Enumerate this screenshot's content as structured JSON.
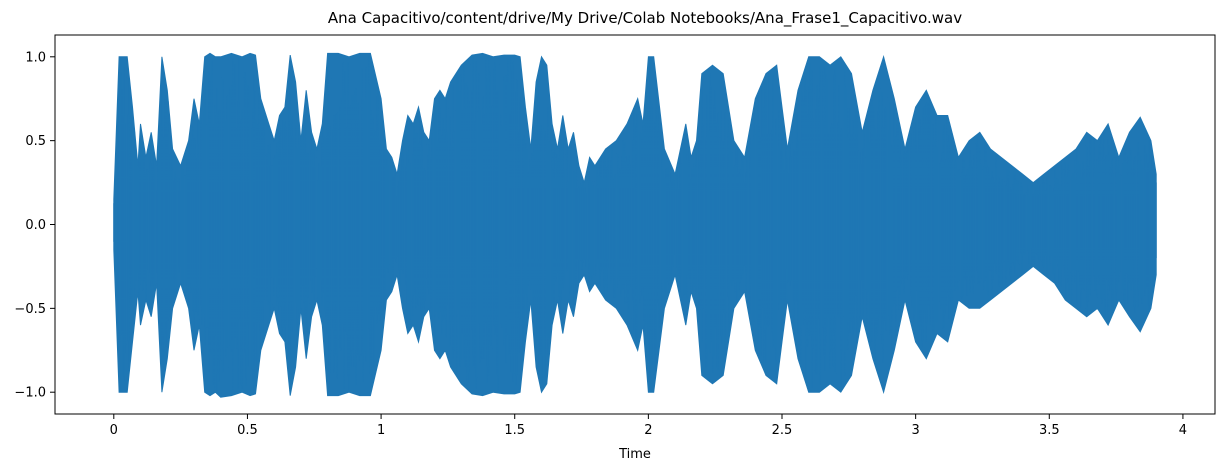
{
  "chart_data": {
    "type": "area",
    "title": "Ana Capacitivo/content/drive/My Drive/Colab Notebooks/Ana_Frase1_Capacitivo.wav",
    "xlabel": "Time",
    "ylabel": "",
    "xlim": [
      -0.22,
      4.12
    ],
    "ylim": [
      -1.13,
      1.13
    ],
    "x_ticks": [
      {
        "value": 0,
        "label": "0"
      },
      {
        "value": 0.5,
        "label": "0.5"
      },
      {
        "value": 1,
        "label": "1"
      },
      {
        "value": 1.5,
        "label": "1.5"
      },
      {
        "value": 2,
        "label": "2"
      },
      {
        "value": 2.5,
        "label": "2.5"
      },
      {
        "value": 3,
        "label": "3"
      },
      {
        "value": 3.5,
        "label": "3.5"
      },
      {
        "value": 4,
        "label": "4"
      }
    ],
    "y_ticks": [
      {
        "value": 1.0,
        "label": "1.0"
      },
      {
        "value": 0.5,
        "label": "0.5"
      },
      {
        "value": 0.0,
        "label": "0.0"
      },
      {
        "value": -0.5,
        "label": "−0.5"
      },
      {
        "value": -1.0,
        "label": "−1.0"
      }
    ],
    "grid": false,
    "color": "#1f77b4",
    "series": [
      {
        "x": [
          0.0,
          0.02,
          0.05,
          0.07,
          0.09,
          0.1,
          0.12,
          0.14,
          0.16,
          0.18,
          0.2,
          0.22,
          0.25,
          0.28,
          0.3,
          0.32,
          0.34,
          0.36,
          0.38,
          0.4,
          0.44,
          0.48,
          0.51,
          0.53,
          0.55,
          0.58,
          0.6,
          0.62,
          0.64,
          0.66,
          0.68,
          0.7,
          0.72,
          0.74,
          0.76,
          0.78,
          0.8,
          0.84,
          0.88,
          0.92,
          0.96,
          1.0,
          1.02,
          1.04,
          1.06,
          1.08,
          1.1,
          1.12,
          1.14,
          1.16,
          1.18,
          1.2,
          1.22,
          1.24,
          1.26,
          1.28,
          1.3,
          1.34,
          1.38,
          1.42,
          1.46,
          1.5,
          1.52,
          1.54,
          1.56,
          1.58,
          1.6,
          1.62,
          1.64,
          1.66,
          1.68,
          1.7,
          1.72,
          1.74,
          1.76,
          1.78,
          1.8,
          1.84,
          1.88,
          1.92,
          1.96,
          1.98,
          2.0,
          2.02,
          2.06,
          2.1,
          2.14,
          2.16,
          2.18,
          2.2,
          2.24,
          2.28,
          2.32,
          2.36,
          2.4,
          2.44,
          2.48,
          2.5,
          2.52,
          2.56,
          2.6,
          2.64,
          2.68,
          2.72,
          2.76,
          2.8,
          2.84,
          2.88,
          2.92,
          2.96,
          3.0,
          3.04,
          3.08,
          3.12,
          3.16,
          3.2,
          3.24,
          3.28,
          3.32,
          3.36,
          3.4,
          3.44,
          3.48,
          3.52,
          3.56,
          3.6,
          3.64,
          3.68,
          3.72,
          3.76,
          3.8,
          3.84,
          3.88,
          3.9
        ],
        "upper": [
          0.15,
          1.0,
          1.0,
          0.7,
          0.35,
          0.6,
          0.4,
          0.55,
          0.35,
          1.0,
          0.8,
          0.45,
          0.35,
          0.5,
          0.75,
          0.6,
          1.0,
          1.02,
          1.0,
          1.0,
          1.02,
          1.0,
          1.02,
          1.01,
          0.75,
          0.6,
          0.5,
          0.65,
          0.7,
          1.01,
          0.85,
          0.5,
          0.8,
          0.55,
          0.45,
          0.6,
          1.02,
          1.02,
          1.0,
          1.02,
          1.02,
          0.75,
          0.45,
          0.4,
          0.3,
          0.5,
          0.65,
          0.6,
          0.7,
          0.55,
          0.5,
          0.75,
          0.8,
          0.75,
          0.85,
          0.9,
          0.95,
          1.01,
          1.02,
          1.0,
          1.01,
          1.01,
          1.0,
          0.7,
          0.45,
          0.85,
          1.0,
          0.95,
          0.6,
          0.45,
          0.65,
          0.45,
          0.55,
          0.35,
          0.25,
          0.4,
          0.35,
          0.45,
          0.5,
          0.6,
          0.75,
          0.6,
          1.0,
          1.0,
          0.45,
          0.3,
          0.6,
          0.4,
          0.5,
          0.9,
          0.95,
          0.9,
          0.5,
          0.4,
          0.75,
          0.9,
          0.95,
          0.7,
          0.45,
          0.8,
          1.0,
          1.0,
          0.95,
          1.0,
          0.9,
          0.55,
          0.8,
          1.0,
          0.75,
          0.45,
          0.7,
          0.8,
          0.65,
          0.65,
          0.4,
          0.5,
          0.55,
          0.45,
          0.4,
          0.35,
          0.3,
          0.25,
          0.3,
          0.35,
          0.4,
          0.45,
          0.55,
          0.5,
          0.6,
          0.4,
          0.55,
          0.64,
          0.5,
          0.3
        ],
        "lower": [
          -0.15,
          -1.0,
          -1.0,
          -0.7,
          -0.4,
          -0.6,
          -0.45,
          -0.55,
          -0.35,
          -1.0,
          -0.8,
          -0.5,
          -0.35,
          -0.5,
          -0.75,
          -0.6,
          -1.0,
          -1.02,
          -1.0,
          -1.03,
          -1.02,
          -1.0,
          -1.02,
          -1.01,
          -0.75,
          -0.6,
          -0.5,
          -0.65,
          -0.7,
          -1.02,
          -0.85,
          -0.5,
          -0.8,
          -0.55,
          -0.45,
          -0.6,
          -1.02,
          -1.02,
          -1.0,
          -1.02,
          -1.02,
          -0.75,
          -0.45,
          -0.4,
          -0.3,
          -0.5,
          -0.65,
          -0.6,
          -0.7,
          -0.55,
          -0.5,
          -0.75,
          -0.8,
          -0.75,
          -0.85,
          -0.9,
          -0.95,
          -1.01,
          -1.02,
          -1.0,
          -1.01,
          -1.01,
          -1.0,
          -0.7,
          -0.45,
          -0.85,
          -1.0,
          -0.95,
          -0.6,
          -0.45,
          -0.65,
          -0.45,
          -0.55,
          -0.35,
          -0.3,
          -0.4,
          -0.35,
          -0.45,
          -0.5,
          -0.6,
          -0.75,
          -0.6,
          -1.0,
          -1.0,
          -0.5,
          -0.3,
          -0.6,
          -0.4,
          -0.5,
          -0.9,
          -0.95,
          -0.9,
          -0.5,
          -0.4,
          -0.75,
          -0.9,
          -0.95,
          -0.7,
          -0.45,
          -0.8,
          -1.0,
          -1.0,
          -0.95,
          -1.0,
          -0.9,
          -0.55,
          -0.8,
          -1.0,
          -0.75,
          -0.45,
          -0.7,
          -0.8,
          -0.65,
          -0.7,
          -0.45,
          -0.5,
          -0.5,
          -0.45,
          -0.4,
          -0.35,
          -0.3,
          -0.25,
          -0.3,
          -0.35,
          -0.45,
          -0.5,
          -0.55,
          -0.5,
          -0.6,
          -0.45,
          -0.55,
          -0.64,
          -0.5,
          -0.3
        ]
      }
    ]
  }
}
